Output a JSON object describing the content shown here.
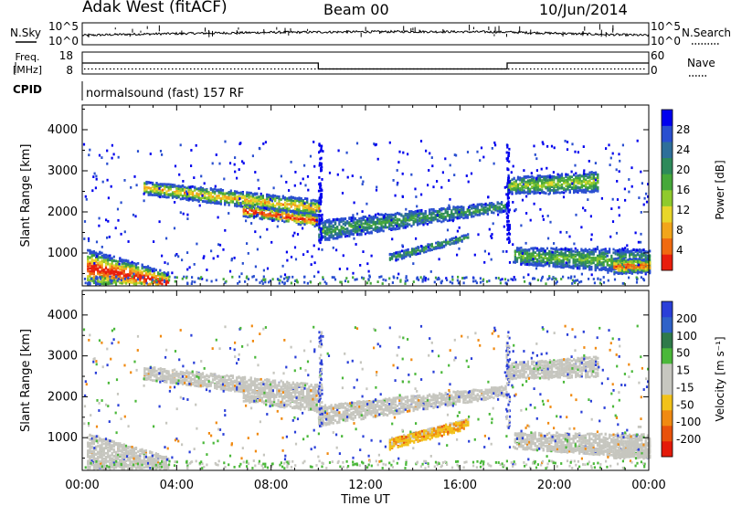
{
  "header": {
    "station": "Adak West (fitACF)",
    "beam": "Beam 00",
    "date": "10/Jun/2014"
  },
  "side_labels": {
    "nsky": "N.Sky",
    "freq_line1": "Freq.",
    "freq_line2": "[MHz]",
    "cpid": "CPID",
    "nsearch": "N.Search",
    "nave": "Nave"
  },
  "cpid_text": "normalsound (fast) 157 RF",
  "colors": {
    "power": [
      "#0000ee",
      "#2a4fd0",
      "#2e6f9a",
      "#2d8a5a",
      "#46a83a",
      "#8fca2c",
      "#e8d62a",
      "#f2a51a",
      "#f06a10",
      "#e81e0c"
    ],
    "velocity": [
      "#2a3fd8",
      "#2f62c8",
      "#2f7a4a",
      "#4bb83a",
      "#c7c7c0",
      "#c7c7c0",
      "#f2c21a",
      "#f08a12",
      "#e8520c",
      "#e41a0a"
    ],
    "gray_scatter": "#c6c6bf"
  },
  "chart_data": [
    {
      "type": "line",
      "name": "sky-noise-panel",
      "ylabel_left": "N.Sky",
      "ylabel_right": "N.Search",
      "left_ticks": [
        "10^5",
        "10^0"
      ],
      "right_ticks": [
        "10^5",
        "10^0"
      ],
      "x_hours": [
        0,
        2,
        4,
        6,
        8,
        10,
        12,
        14,
        16,
        18,
        20,
        22,
        24
      ],
      "level": [
        0.38,
        0.45,
        0.5,
        0.54,
        0.58,
        0.6,
        0.62,
        0.63,
        0.62,
        0.6,
        0.52,
        0.44,
        0.38
      ]
    },
    {
      "type": "line",
      "name": "frequency-panel",
      "ylabel_left": "Freq. [MHz]",
      "ylabel_right": "Nave",
      "left_ticks": [
        "18",
        "8"
      ],
      "right_ticks": [
        "60",
        "0"
      ],
      "freq_segments": [
        {
          "x_start": 0,
          "x_end": 10,
          "value": 13
        },
        {
          "x_start": 10,
          "x_end": 18,
          "value": 10.3
        },
        {
          "x_start": 18,
          "x_end": 24,
          "value": 13
        }
      ],
      "nave_level": 10.3
    },
    {
      "type": "heatmap",
      "name": "power-panel",
      "ylabel": "Slant Range [km]",
      "ylim": [
        200,
        4600
      ],
      "yticks": [
        1000,
        2000,
        3000,
        4000
      ],
      "xlim": [
        0,
        24
      ],
      "colorbar_label": "Power [dB]",
      "colorbar_ticks": [
        "28",
        "24",
        "20",
        "16",
        "12",
        "8",
        "4"
      ],
      "bands": [
        {
          "x0": 0.2,
          "x1": 3.6,
          "r0": 600,
          "r1": 250,
          "w0": 950,
          "w1": 500,
          "inten": 1.0
        },
        {
          "x0": 2.6,
          "x1": 10.0,
          "r0": 2550,
          "r1": 2050,
          "w0": 320,
          "w1": 420,
          "inten": 0.7
        },
        {
          "x0": 6.8,
          "x1": 9.9,
          "r0": 2000,
          "r1": 1750,
          "w0": 300,
          "w1": 300,
          "inten": 1.0
        },
        {
          "x0": 10.0,
          "x1": 17.9,
          "r0": 1500,
          "r1": 2100,
          "w0": 500,
          "w1": 250,
          "inten": 0.3
        },
        {
          "x0": 13.0,
          "x1": 16.3,
          "r0": 850,
          "r1": 1350,
          "w0": 200,
          "w1": 150,
          "inten": 0.3
        },
        {
          "x0": 18.0,
          "x1": 21.8,
          "r0": 2600,
          "r1": 2700,
          "w0": 400,
          "w1": 500,
          "inten": 0.5
        },
        {
          "x0": 18.3,
          "x1": 24.0,
          "r0": 900,
          "r1": 750,
          "w0": 400,
          "w1": 600,
          "inten": 0.4
        },
        {
          "x0": 22.5,
          "x1": 24.0,
          "r0": 650,
          "r1": 650,
          "w0": 400,
          "w1": 350,
          "inten": 0.9
        }
      ]
    },
    {
      "type": "heatmap",
      "name": "velocity-panel",
      "ylabel": "Slant Range [km]",
      "ylim": [
        200,
        4600
      ],
      "yticks": [
        1000,
        2000,
        3000,
        4000
      ],
      "xlim": [
        0,
        24
      ],
      "xticks": [
        "00:00",
        "04:00",
        "08:00",
        "12:00",
        "16:00",
        "20:00",
        "00:00"
      ],
      "xlabel": "Time UT",
      "colorbar_label": "Velocity [m s⁻¹]",
      "colorbar_ticks": [
        "200",
        "100",
        "50",
        "15",
        "-15",
        "-50",
        "-100",
        "-200"
      ],
      "orange_band": {
        "x0": 13.0,
        "x1": 16.3,
        "r0": 800,
        "r1": 1300,
        "w": 250
      }
    }
  ]
}
